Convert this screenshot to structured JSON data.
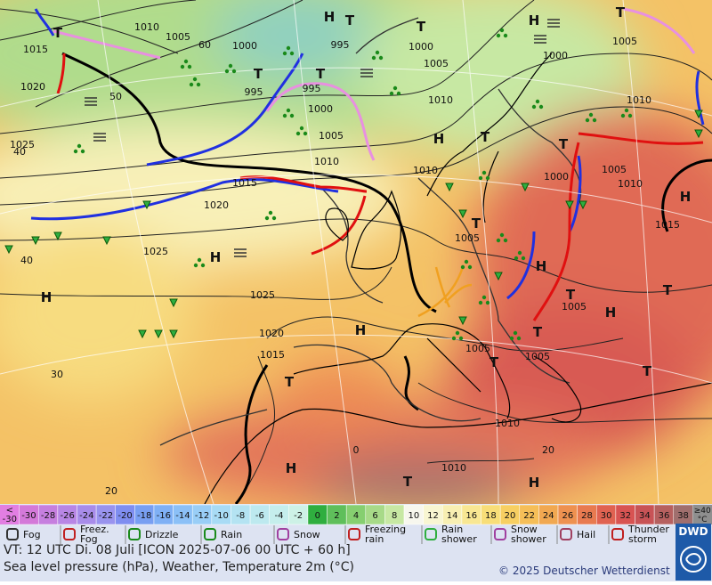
{
  "map": {
    "labels": [
      "1015",
      "T",
      "1010",
      "1005",
      "1000",
      "H",
      "T",
      "T",
      "995",
      "1000",
      "H",
      "T",
      "1005",
      "1000",
      "1005",
      "T",
      "T",
      "995",
      "995",
      "1000",
      "1020",
      "1010",
      "1010",
      "1025",
      "1005",
      "H",
      "T",
      "1010",
      "1010",
      "T",
      "1005",
      "1000",
      "1010",
      "1015",
      "1020",
      "H",
      "1015",
      "T",
      "1005",
      "1025",
      "H",
      "H",
      "H",
      "1025",
      "T",
      "T",
      "1005",
      "H",
      "1020",
      "H",
      "T",
      "1015",
      "1005",
      "T",
      "1005",
      "T",
      "T",
      "1010",
      "H",
      "1010",
      "T",
      "H",
      "60",
      "50",
      "40",
      "40",
      "30",
      "20",
      "0",
      "20"
    ]
  },
  "legend": {
    "scale": {
      "low_prefix": "<",
      "low_value": -30,
      "low_color": "#e27ee2",
      "cells": [
        {
          "value": -30,
          "color": "#d479d9"
        },
        {
          "value": -28,
          "color": "#c67fdf"
        },
        {
          "value": -26,
          "color": "#b886e5"
        },
        {
          "value": -24,
          "color": "#a88cea"
        },
        {
          "value": -22,
          "color": "#9993ee"
        },
        {
          "value": -20,
          "color": "#7f8ef0"
        },
        {
          "value": -18,
          "color": "#789ff2"
        },
        {
          "value": -16,
          "color": "#7fb0f5"
        },
        {
          "value": -14,
          "color": "#8bc0f7"
        },
        {
          "value": -12,
          "color": "#99cef7"
        },
        {
          "value": -10,
          "color": "#a8dbf5"
        },
        {
          "value": -8,
          "color": "#b4e3f2"
        },
        {
          "value": -6,
          "color": "#bde9ef"
        },
        {
          "value": -4,
          "color": "#c5eeec"
        },
        {
          "value": -2,
          "color": "#cdf1e6"
        },
        {
          "value": 0,
          "color": "#2fae3f"
        },
        {
          "value": 2,
          "color": "#5fbf5b"
        },
        {
          "value": 4,
          "color": "#86cf70"
        },
        {
          "value": 6,
          "color": "#a7da88"
        },
        {
          "value": 8,
          "color": "#c7e8a3"
        },
        {
          "value": 10,
          "color": "#f7f7ee"
        },
        {
          "value": 12,
          "color": "#f8f6d2"
        },
        {
          "value": 14,
          "color": "#f8efb2"
        },
        {
          "value": 16,
          "color": "#f8e793"
        },
        {
          "value": 18,
          "color": "#f8de78"
        },
        {
          "value": 20,
          "color": "#f7cf62"
        },
        {
          "value": 22,
          "color": "#f5be58"
        },
        {
          "value": 24,
          "color": "#f1a851"
        },
        {
          "value": 26,
          "color": "#ee9150"
        },
        {
          "value": 28,
          "color": "#e87a50"
        },
        {
          "value": 30,
          "color": "#e06251"
        },
        {
          "value": 32,
          "color": "#d85352"
        },
        {
          "value": 34,
          "color": "#c85356"
        },
        {
          "value": 36,
          "color": "#b6605f"
        },
        {
          "value": 38,
          "color": "#a06f6e"
        }
      ],
      "high_label": "≥40",
      "unit": "°C",
      "high_color": "#8f8f8f"
    },
    "weather": [
      {
        "lines": [
          "Fog"
        ]
      },
      {
        "lines": [
          "Freez.",
          "Fog"
        ]
      },
      {
        "lines": [
          "Drizzle"
        ]
      },
      {
        "lines": [
          "Rain"
        ]
      },
      {
        "lines": [
          "Snow"
        ]
      },
      {
        "lines": [
          "Freezing",
          "rain"
        ]
      },
      {
        "lines": [
          "Rain",
          "shower"
        ]
      },
      {
        "lines": [
          "Snow",
          "shower"
        ]
      },
      {
        "lines": [
          "Hail"
        ]
      },
      {
        "lines": [
          "Thunder",
          "storm"
        ]
      }
    ]
  },
  "footer": {
    "valid_time": "VT: 12 UTC Di.  08 Juli [ICON 2025-07-06  00 UTC + 60 h]",
    "description": "Sea level pressure (hPa), Weather, Temperature 2m (°C)",
    "copyright": "© 2025 Deutscher Wetterdienst",
    "logo": "DWD"
  }
}
